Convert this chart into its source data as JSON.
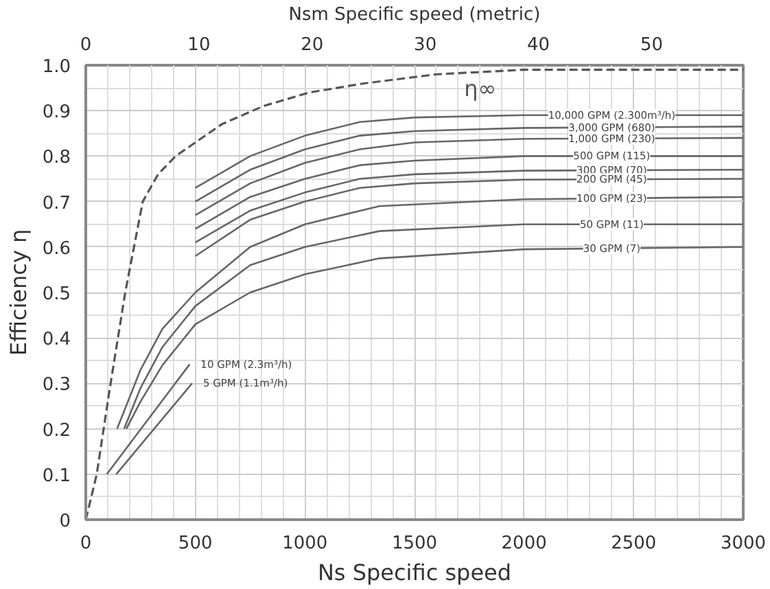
{
  "chart_data": {
    "type": "line",
    "xlabel": "Ns Specific speed",
    "ylabel": "Efficiency η",
    "x2label": "Nsm Specific speed (metric)",
    "xlim": [
      0,
      3000
    ],
    "xticks": [
      0,
      500,
      1000,
      1500,
      2000,
      2500,
      3000
    ],
    "ylim": [
      0,
      1.0
    ],
    "yticks": [
      0,
      0.1,
      0.2,
      0.3,
      0.4,
      0.5,
      0.6,
      0.7,
      0.8,
      0.9,
      {
        "value": 1.0,
        "label": "1.0"
      }
    ],
    "x2lim": [
      0,
      58.1
    ],
    "x2ticks": [
      0,
      10,
      20,
      30,
      40,
      50
    ],
    "grid": true,
    "series": [
      {
        "name": "η∞",
        "color": "#555555",
        "line_style": "dashed",
        "x": [
          0,
          50,
          110,
          180,
          260,
          330,
          410,
          620,
          810,
          1020,
          1270,
          1600,
          2000,
          3000
        ],
        "values": [
          0,
          0.1,
          0.29,
          0.5,
          0.7,
          0.76,
          0.8,
          0.87,
          0.91,
          0.94,
          0.96,
          0.98,
          0.99,
          0.99
        ]
      },
      {
        "name": "10,000 GPM (2.300m³/h)",
        "color": "#666666",
        "x": [
          500,
          750,
          1000,
          1250,
          1500,
          2000,
          3000
        ],
        "values": [
          0.73,
          0.8,
          0.845,
          0.875,
          0.885,
          0.89,
          0.89
        ]
      },
      {
        "name": "3,000 GPM (680)",
        "color": "#666666",
        "x": [
          500,
          750,
          1000,
          1250,
          1500,
          2000,
          3000
        ],
        "values": [
          0.7,
          0.77,
          0.815,
          0.845,
          0.855,
          0.862,
          0.865
        ]
      },
      {
        "name": "1,000 GPM (230)",
        "color": "#666666",
        "x": [
          500,
          750,
          1000,
          1250,
          1500,
          2000,
          3000
        ],
        "values": [
          0.67,
          0.74,
          0.785,
          0.815,
          0.83,
          0.838,
          0.84
        ]
      },
      {
        "name": "500 GPM (115)",
        "color": "#666666",
        "x": [
          500,
          750,
          1000,
          1250,
          1500,
          2000,
          3000
        ],
        "values": [
          0.64,
          0.71,
          0.75,
          0.78,
          0.79,
          0.8,
          0.8
        ]
      },
      {
        "name": "300 GPM (70)",
        "color": "#666666",
        "x": [
          500,
          750,
          1000,
          1250,
          1500,
          2000,
          3000
        ],
        "values": [
          0.61,
          0.68,
          0.72,
          0.75,
          0.76,
          0.768,
          0.77
        ]
      },
      {
        "name": "200 GPM (45)",
        "color": "#666666",
        "x": [
          500,
          750,
          1000,
          1250,
          1500,
          2000,
          3000
        ],
        "values": [
          0.58,
          0.66,
          0.7,
          0.73,
          0.74,
          0.748,
          0.75
        ]
      },
      {
        "name": "100 GPM (23)",
        "color": "#666666",
        "x": [
          143,
          250,
          350,
          500,
          750,
          1000,
          1340,
          2000,
          3000
        ],
        "values": [
          0.2,
          0.33,
          0.42,
          0.5,
          0.6,
          0.65,
          0.69,
          0.705,
          0.71
        ]
      },
      {
        "name": "50 GPM (11)",
        "color": "#666666",
        "x": [
          175,
          250,
          350,
          500,
          750,
          1000,
          1340,
          2000,
          3000
        ],
        "values": [
          0.2,
          0.29,
          0.38,
          0.47,
          0.56,
          0.6,
          0.635,
          0.65,
          0.65
        ]
      },
      {
        "name": "30 GPM (7)",
        "color": "#666666",
        "x": [
          185,
          250,
          350,
          500,
          750,
          1000,
          1340,
          2000,
          3000
        ],
        "values": [
          0.2,
          0.26,
          0.34,
          0.43,
          0.5,
          0.54,
          0.575,
          0.595,
          0.6
        ]
      },
      {
        "name": "10 GPM (2.3m³/h)",
        "color": "#666666",
        "x": [
          96,
          474
        ],
        "values": [
          0.1,
          0.342
        ]
      },
      {
        "name": "5 GPM (1.1m³/h)",
        "color": "#666666",
        "x": [
          139,
          485
        ],
        "values": [
          0.1,
          0.3
        ]
      }
    ]
  }
}
